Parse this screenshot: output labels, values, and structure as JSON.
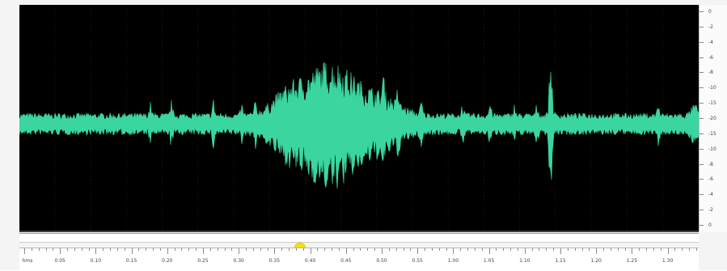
{
  "waveform": {
    "color": "#3bd6a0",
    "background": "#000000"
  },
  "db_scale": {
    "labels": [
      "0",
      "-2",
      "-4",
      "-6",
      "-8",
      "-10",
      "-15",
      "-20",
      "-15",
      "-10",
      "-8",
      "-6",
      "-4",
      "-2",
      "0"
    ]
  },
  "timeline": {
    "labels": [
      "hms",
      "0.05",
      "0.10",
      "0.15",
      "0.20",
      "0.25",
      "0.30",
      "0.35",
      "0.40",
      "0.45",
      "0.50",
      "0.55",
      "1.00",
      "1.05",
      "1.10",
      "1.15",
      "1.20",
      "1.25",
      "1.30"
    ],
    "playhead_color": "#f5e000"
  }
}
